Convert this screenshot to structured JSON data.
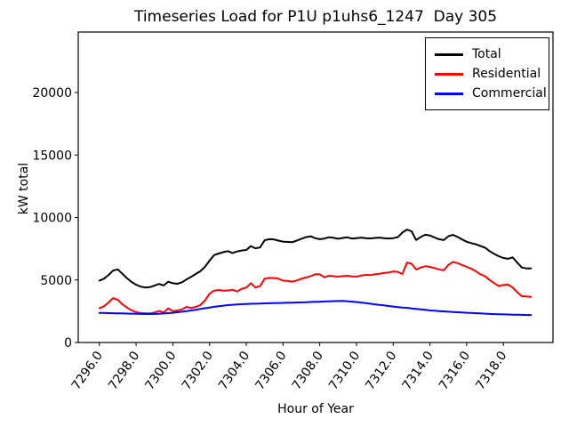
{
  "title": "Timeseries Load for P1U p1uhs6_1247  Day 305",
  "chart_data": {
    "type": "line",
    "title": "Timeseries Load for P1U p1uhs6_1247  Day 305",
    "xlabel": "Hour of Year",
    "ylabel": "kW total",
    "grid": false,
    "legend_position": "upper right",
    "xlim": [
      7294.85,
      7320.7
    ],
    "ylim": [
      0,
      24840
    ],
    "xticks": {
      "values": [
        7296,
        7298,
        7300,
        7302,
        7304,
        7306,
        7308,
        7310,
        7312,
        7314,
        7316,
        7318
      ],
      "labels": [
        "7296.0",
        "7298.0",
        "7300.0",
        "7302.0",
        "7304.0",
        "7306.0",
        "7308.0",
        "7310.0",
        "7312.0",
        "7314.0",
        "7316.0",
        "7318.0"
      ]
    },
    "yticks": {
      "values": [
        0,
        5000,
        10000,
        15000,
        20000
      ],
      "labels": [
        "0",
        "5000",
        "10000",
        "15000",
        "20000"
      ]
    },
    "x": [
      7296.0,
      7296.25,
      7296.5,
      7296.75,
      7297.0,
      7297.25,
      7297.5,
      7297.75,
      7298.0,
      7298.25,
      7298.5,
      7298.75,
      7299.0,
      7299.25,
      7299.5,
      7299.75,
      7300.0,
      7300.25,
      7300.5,
      7300.75,
      7301.0,
      7301.25,
      7301.5,
      7301.75,
      7302.0,
      7302.25,
      7302.5,
      7302.75,
      7303.0,
      7303.25,
      7303.5,
      7303.75,
      7304.0,
      7304.25,
      7304.5,
      7304.75,
      7305.0,
      7305.25,
      7305.5,
      7305.75,
      7306.0,
      7306.25,
      7306.5,
      7306.75,
      7307.0,
      7307.25,
      7307.5,
      7307.75,
      7308.0,
      7308.25,
      7308.5,
      7308.75,
      7309.0,
      7309.25,
      7309.5,
      7309.75,
      7310.0,
      7310.25,
      7310.5,
      7310.75,
      7311.0,
      7311.25,
      7311.5,
      7311.75,
      7312.0,
      7312.25,
      7312.5,
      7312.75,
      7313.0,
      7313.25,
      7313.5,
      7313.75,
      7314.0,
      7314.25,
      7314.5,
      7314.75,
      7315.0,
      7315.25,
      7315.5,
      7315.75,
      7316.0,
      7316.25,
      7316.5,
      7316.75,
      7317.0,
      7317.25,
      7317.5,
      7317.75,
      7318.0,
      7318.25,
      7318.5,
      7318.75,
      7319.0,
      7319.25,
      7319.5
    ],
    "series": [
      {
        "name": "Total",
        "color": "#000000",
        "values": [
          4950,
          5100,
          5400,
          5750,
          5850,
          5500,
          5150,
          4850,
          4620,
          4470,
          4400,
          4430,
          4550,
          4680,
          4560,
          4860,
          4740,
          4700,
          4820,
          5050,
          5250,
          5480,
          5700,
          6050,
          6550,
          7000,
          7120,
          7230,
          7310,
          7160,
          7280,
          7360,
          7400,
          7710,
          7540,
          7600,
          8180,
          8260,
          8250,
          8150,
          8070,
          8040,
          8020,
          8160,
          8300,
          8430,
          8500,
          8350,
          8260,
          8310,
          8420,
          8380,
          8300,
          8360,
          8420,
          8310,
          8350,
          8390,
          8350,
          8330,
          8360,
          8390,
          8350,
          8320,
          8350,
          8420,
          8800,
          9030,
          8900,
          8200,
          8450,
          8620,
          8560,
          8400,
          8260,
          8190,
          8500,
          8610,
          8450,
          8250,
          8060,
          7950,
          7860,
          7720,
          7590,
          7310,
          7090,
          6900,
          6760,
          6700,
          6810,
          6400,
          6000,
          5930,
          5930
        ]
      },
      {
        "name": "Residential",
        "color": "#ff0000",
        "values": [
          2750,
          2900,
          3200,
          3550,
          3420,
          3050,
          2800,
          2580,
          2430,
          2360,
          2330,
          2330,
          2400,
          2520,
          2400,
          2730,
          2500,
          2560,
          2650,
          2850,
          2760,
          2850,
          3000,
          3350,
          3900,
          4150,
          4200,
          4150,
          4160,
          4220,
          4080,
          4300,
          4390,
          4750,
          4400,
          4510,
          5100,
          5170,
          5160,
          5100,
          4950,
          4930,
          4870,
          4960,
          5100,
          5200,
          5310,
          5460,
          5450,
          5220,
          5340,
          5300,
          5270,
          5310,
          5340,
          5280,
          5270,
          5350,
          5410,
          5390,
          5450,
          5500,
          5560,
          5600,
          5690,
          5650,
          5480,
          6400,
          6300,
          5840,
          6000,
          6100,
          6050,
          5950,
          5850,
          5770,
          6200,
          6450,
          6350,
          6200,
          6050,
          5900,
          5700,
          5460,
          5300,
          5000,
          4750,
          4510,
          4600,
          4630,
          4400,
          4030,
          3700,
          3680,
          3650
        ]
      },
      {
        "name": "Commercial",
        "color": "#0000ff",
        "values": [
          2370,
          2360,
          2350,
          2345,
          2335,
          2325,
          2315,
          2305,
          2295,
          2285,
          2280,
          2280,
          2285,
          2300,
          2320,
          2350,
          2380,
          2420,
          2460,
          2510,
          2560,
          2620,
          2680,
          2740,
          2800,
          2855,
          2905,
          2950,
          2990,
          3020,
          3045,
          3065,
          3080,
          3095,
          3105,
          3115,
          3130,
          3140,
          3150,
          3160,
          3170,
          3180,
          3190,
          3200,
          3210,
          3220,
          3235,
          3250,
          3260,
          3280,
          3295,
          3310,
          3320,
          3325,
          3300,
          3270,
          3235,
          3195,
          3155,
          3105,
          3055,
          3010,
          2965,
          2920,
          2875,
          2830,
          2800,
          2775,
          2720,
          2680,
          2650,
          2620,
          2560,
          2540,
          2515,
          2490,
          2465,
          2440,
          2420,
          2400,
          2380,
          2360,
          2345,
          2325,
          2305,
          2285,
          2270,
          2260,
          2250,
          2240,
          2230,
          2220,
          2210,
          2200,
          2200
        ]
      }
    ]
  }
}
